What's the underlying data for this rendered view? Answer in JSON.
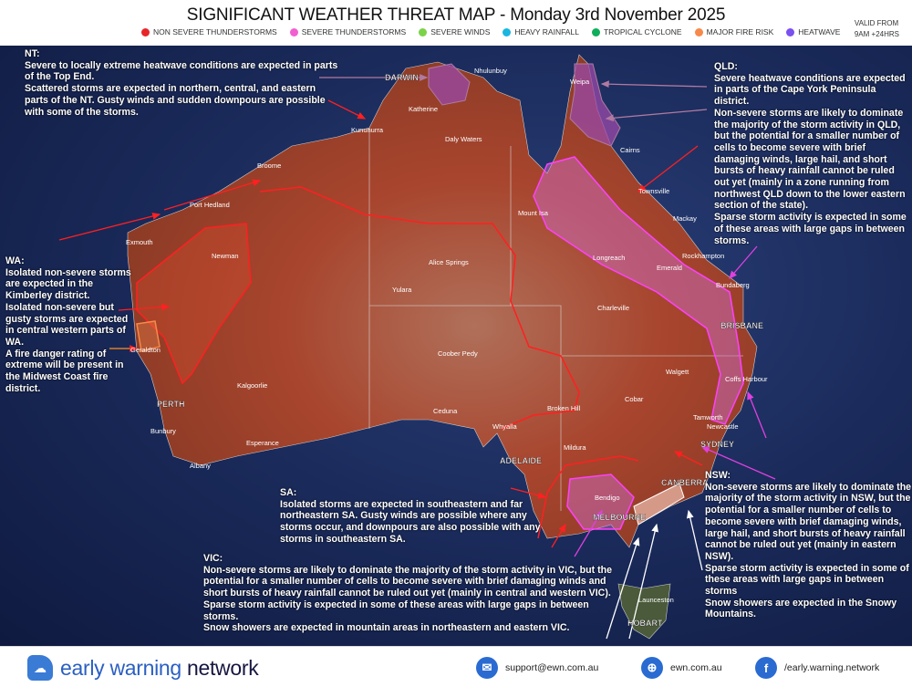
{
  "header": {
    "title": "SIGNIFICANT WEATHER THREAT MAP - Monday 3rd November 2025",
    "valid_line1": "VALID FROM",
    "valid_line2": "9AM +24HRS"
  },
  "legend": [
    {
      "label": "NON SEVERE THUNDERSTORMS",
      "color": "#e8262a"
    },
    {
      "label": "SEVERE THUNDERSTORMS",
      "color": "#f25fd0"
    },
    {
      "label": "SEVERE WINDS",
      "color": "#7bd34a"
    },
    {
      "label": "HEAVY RAINFALL",
      "color": "#19b6e0"
    },
    {
      "label": "TROPICAL CYCLONE",
      "color": "#0fae5a"
    },
    {
      "label": "MAJOR FIRE RISK",
      "color": "#f7894a"
    },
    {
      "label": "HEATWAVE",
      "color": "#7b4ff0"
    }
  ],
  "notes": {
    "nt": {
      "heading": "NT:",
      "lines": [
        "Severe to locally extreme heatwave conditions are expected in parts of the Top End.",
        "Scattered storms are expected in northern, central, and eastern parts of the NT. Gusty winds and sudden downpours are possible with some of the storms."
      ]
    },
    "qld": {
      "heading": "QLD:",
      "lines": [
        "Severe heatwave conditions are expected in parts of the Cape York Peninsula district.",
        "Non-severe storms are likely to dominate the majority of the storm activity in QLD, but the potential for a smaller number of cells to become severe with brief damaging winds, large hail, and short bursts of heavy rainfall cannot be ruled out yet (mainly in a zone running from northwest QLD down to the lower eastern section of the state).",
        "Sparse storm activity is expected in some of these areas with large gaps in between storms."
      ]
    },
    "wa": {
      "heading": "WA:",
      "lines": [
        "Isolated non-severe storms are expected in the Kimberley district.",
        "Isolated non-severe but gusty storms are expected in central western parts of WA.",
        "A fire danger rating of extreme will be present in the Midwest Coast fire district."
      ]
    },
    "sa": {
      "heading": "SA:",
      "lines": [
        "Isolated storms are expected in southeastern and far northeastern SA. Gusty winds are possible where any storms occur, and downpours are also possible with any storms in southeastern SA."
      ]
    },
    "vic": {
      "heading": "VIC:",
      "lines": [
        "Non-severe storms are likely to dominate the majority of the storm activity in VIC, but the potential for a smaller number of cells to become severe with brief damaging winds and short bursts of heavy rainfall cannot be ruled out yet (mainly in central and western VIC).",
        "Sparse storm activity is expected in some of these areas with large gaps in between storms.",
        "Snow showers are expected in mountain areas in northeastern and eastern VIC."
      ]
    },
    "nsw": {
      "heading": "NSW:",
      "lines": [
        "Non-severe storms are likely to dominate the majority of the storm activity in NSW, but the potential for a smaller number of cells to become severe with brief damaging winds, large hail, and short bursts of heavy rainfall cannot be ruled out yet (mainly in eastern NSW).",
        "Sparse storm activity is expected in some of these areas with large gaps in between storms",
        "Snow showers are expected in the Snowy Mountains."
      ]
    }
  },
  "places": {
    "darwin": "DARWIN",
    "nhulunbuy": "Nhulunbuy",
    "weipa": "Weipa",
    "katherine": "Katherine",
    "kununurra": "Kununurra",
    "daly_waters": "Daly Waters",
    "cairns": "Cairns",
    "townsville": "Townsville",
    "broome": "Broome",
    "port_hedland": "Port Hedland",
    "mount_isa": "Mount Isa",
    "mackay": "Mackay",
    "exmouth": "Exmouth",
    "newman": "Newman",
    "alice_springs": "Alice Springs",
    "longreach": "Longreach",
    "emerald": "Emerald",
    "rockhampton": "Rockhampton",
    "bundaberg": "Bundaberg",
    "yulara": "Yulara",
    "charleville": "Charleville",
    "brisbane": "BRISBANE",
    "geraldton": "Geraldton",
    "coober_pedy": "Coober Pedy",
    "walgett": "Walgett",
    "coffs_harbour": "Coffs Harbour",
    "perth": "PERTH",
    "kalgoorlie": "Kalgoorlie",
    "ceduna": "Ceduna",
    "broken_hill": "Broken Hill",
    "cobar": "Cobar",
    "tamworth": "Tamworth",
    "whyalla": "Whyalla",
    "newcastle": "Newcastle",
    "bunbury": "Bunbury",
    "esperance": "Esperance",
    "adelaide": "ADELAIDE",
    "mildura": "Mildura",
    "sydney": "SYDNEY",
    "albany": "Albany",
    "canberra": "CANBERRA",
    "bendigo": "Bendigo",
    "melbourne": "MELBOURNE",
    "launceston": "Launceston",
    "hobart": "HOBART"
  },
  "footer": {
    "brand_light": "early warning",
    "brand_bold": "network",
    "email": "support@ewn.com.au",
    "website": "ewn.com.au",
    "facebook": "/early.warning.network"
  }
}
